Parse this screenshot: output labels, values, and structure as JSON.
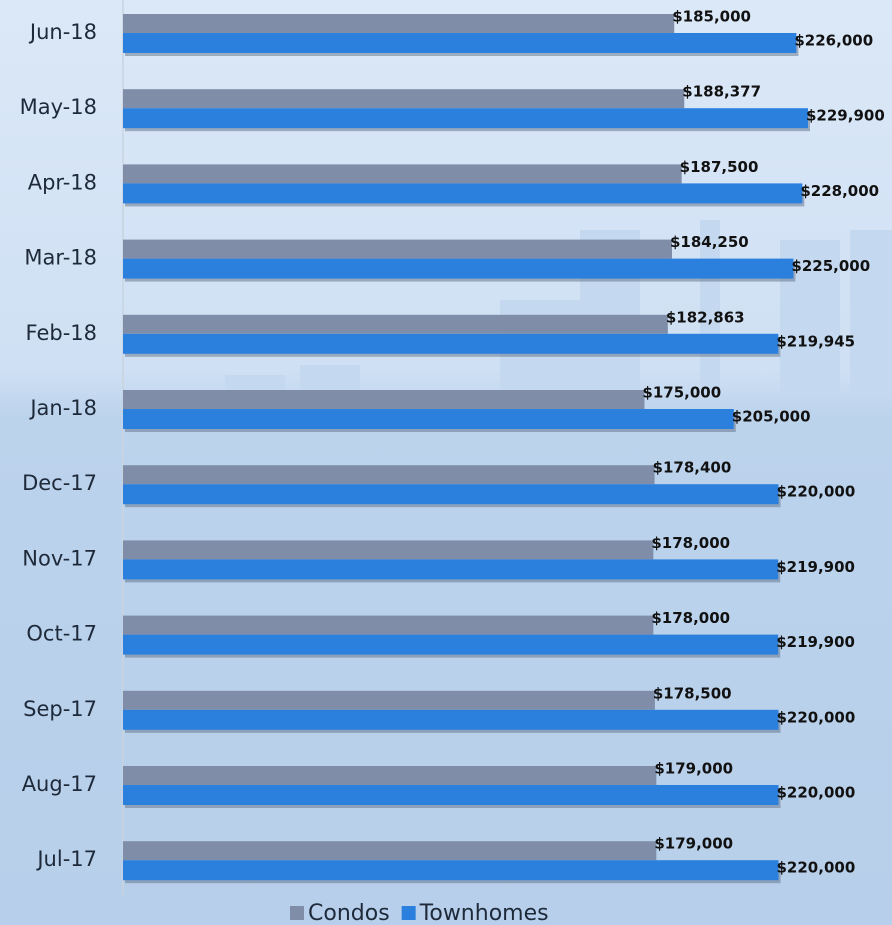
{
  "chart_data": {
    "type": "bar",
    "orientation": "horizontal",
    "categories": [
      "Jun-18",
      "May-18",
      "Apr-18",
      "Mar-18",
      "Feb-18",
      "Jan-18",
      "Dec-17",
      "Nov-17",
      "Oct-17",
      "Sep-17",
      "Aug-17",
      "Jul-17"
    ],
    "series": [
      {
        "name": "Condos",
        "color": "#7f8da8",
        "values": [
          185000,
          188377,
          187500,
          184250,
          182863,
          175000,
          178400,
          178000,
          178000,
          178500,
          179000,
          179000
        ],
        "value_labels": [
          "$185,000",
          "$188,377",
          "$187,500",
          "$184,250",
          "$182,863",
          "$175,000",
          "$178,400",
          "$178,000",
          "$178,000",
          "$178,500",
          "$179,000",
          "$179,000"
        ]
      },
      {
        "name": "Townhomes",
        "color": "#2b80de",
        "values": [
          226000,
          229900,
          228000,
          225000,
          219945,
          205000,
          220000,
          219900,
          219900,
          220000,
          220000,
          220000
        ],
        "value_labels": [
          "$226,000",
          "$229,900",
          "$228,000",
          "$225,000",
          "$219,945",
          "$205,000",
          "$220,000",
          "$219,900",
          "$219,900",
          "$220,000",
          "$220,000",
          "$220,000"
        ]
      }
    ],
    "legend": "bottom"
  }
}
